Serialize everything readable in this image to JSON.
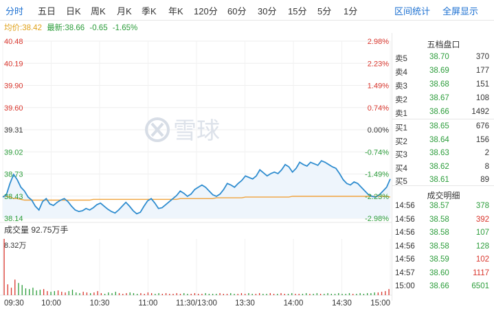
{
  "tabs": {
    "items": [
      "分时",
      "五日",
      "日K",
      "周K",
      "月K",
      "季K",
      "年K",
      "120分",
      "60分",
      "30分",
      "15分",
      "5分",
      "1分"
    ],
    "active": "分时",
    "interval_stats": "区间统计",
    "fullscreen": "全屏显示"
  },
  "info": {
    "avg_label": "均价:38.42",
    "latest_label": "最新:38.66",
    "change": "-0.65",
    "change_pct": "-1.65%"
  },
  "chart_data": {
    "type": "line",
    "price_axis": [
      "40.48",
      "40.19",
      "39.90",
      "39.60",
      "39.31",
      "39.02",
      "38.73",
      "38.43",
      "38.14"
    ],
    "pct_axis": [
      "2.98%",
      "2.23%",
      "1.49%",
      "0.74%",
      "0.00%",
      "-0.74%",
      "-1.49%",
      "-2.23%",
      "-2.98%"
    ],
    "ylim": [
      38.14,
      40.48
    ],
    "x_ticks": [
      "09:30",
      "10:00",
      "10:30",
      "11:00",
      "11:30/13:00",
      "13:30",
      "14:00",
      "14:30",
      "15:00"
    ],
    "price_series": [
      38.42,
      38.45,
      38.6,
      38.72,
      38.65,
      38.55,
      38.5,
      38.42,
      38.38,
      38.3,
      38.25,
      38.36,
      38.4,
      38.33,
      38.31,
      38.35,
      38.38,
      38.4,
      38.36,
      38.3,
      38.25,
      38.23,
      38.24,
      38.27,
      38.25,
      38.28,
      38.32,
      38.34,
      38.3,
      38.26,
      38.23,
      38.21,
      38.25,
      38.3,
      38.35,
      38.3,
      38.24,
      38.2,
      38.22,
      38.3,
      38.37,
      38.4,
      38.34,
      38.27,
      38.28,
      38.32,
      38.36,
      38.4,
      38.44,
      38.5,
      38.47,
      38.43,
      38.46,
      38.52,
      38.55,
      38.58,
      38.55,
      38.5,
      38.45,
      38.43,
      38.46,
      38.52,
      38.6,
      38.58,
      38.55,
      38.6,
      38.64,
      38.7,
      38.68,
      38.66,
      38.7,
      38.78,
      38.74,
      38.7,
      38.73,
      38.75,
      38.73,
      38.78,
      38.85,
      38.82,
      38.75,
      38.8,
      38.88,
      38.85,
      38.83,
      38.88,
      38.86,
      38.84,
      38.9,
      38.88,
      38.85,
      38.82,
      38.8,
      38.73,
      38.65,
      38.6,
      38.58,
      38.62,
      38.6,
      38.55,
      38.5,
      38.45,
      38.43,
      38.42,
      38.45,
      38.5,
      38.55,
      38.66
    ],
    "avg_series": [
      38.43,
      38.43,
      38.42,
      38.4,
      38.4,
      38.39,
      38.38,
      38.38,
      38.38,
      38.38,
      38.38,
      38.38,
      38.38,
      38.38,
      38.38,
      38.38,
      38.38,
      38.38,
      38.38,
      38.38,
      38.38,
      38.38,
      38.38,
      38.38,
      38.38,
      38.39,
      38.39,
      38.39,
      38.39,
      38.39,
      38.39,
      38.39,
      38.39,
      38.39,
      38.39,
      38.39,
      38.39,
      38.39,
      38.39,
      38.39,
      38.39,
      38.39,
      38.39,
      38.39,
      38.39,
      38.39,
      38.39,
      38.39,
      38.39,
      38.4,
      38.4,
      38.4,
      38.4,
      38.4,
      38.4,
      38.4,
      38.4,
      38.4,
      38.4,
      38.41,
      38.41,
      38.41,
      38.41,
      38.41,
      38.41,
      38.41,
      38.41,
      38.42,
      38.42,
      38.42,
      38.42,
      38.42,
      38.42,
      38.42,
      38.42,
      38.42,
      38.42,
      38.42,
      38.42,
      38.42,
      38.43,
      38.43,
      38.43,
      38.43,
      38.43,
      38.43,
      38.43,
      38.43,
      38.43,
      38.43,
      38.43,
      38.43,
      38.43,
      38.43,
      38.43,
      38.43,
      38.43,
      38.43,
      38.43,
      38.43,
      38.43,
      38.43,
      38.43,
      38.43,
      38.43,
      38.43,
      38.43,
      38.42
    ],
    "volume_label": "成交量 92.75万手",
    "volume_max": "8.32万",
    "volume_series": [
      8.32,
      1.6,
      1.1,
      2.3,
      1.8,
      1.5,
      1.0,
      0.9,
      1.1,
      0.7,
      0.8,
      0.9,
      0.6,
      0.5,
      0.6,
      0.7,
      0.5,
      0.4,
      0.6,
      0.8,
      0.4,
      0.3,
      0.5,
      0.4,
      0.3,
      0.4,
      0.6,
      0.3,
      0.2,
      0.4,
      0.3,
      0.5,
      0.3,
      0.2,
      0.3,
      0.4,
      0.3,
      0.2,
      0.3,
      0.2,
      0.4,
      0.3,
      0.2,
      0.3,
      0.2,
      0.3,
      0.2,
      0.2,
      0.3,
      0.2,
      0.3,
      0.2,
      0.2,
      0.3,
      0.2,
      0.2,
      0.3,
      0.2,
      0.2,
      0.2,
      0.3,
      0.2,
      0.2,
      0.3,
      0.2,
      0.2,
      0.3,
      0.2,
      0.3,
      0.2,
      0.2,
      0.3,
      0.2,
      0.2,
      0.3,
      0.2,
      0.2,
      0.3,
      0.2,
      0.2,
      0.3,
      0.2,
      0.2,
      0.2,
      0.3,
      0.2,
      0.2,
      0.3,
      0.2,
      0.2,
      0.3,
      0.2,
      0.2,
      0.3,
      0.2,
      0.2,
      0.3,
      0.2,
      0.2,
      0.3,
      0.2,
      0.3,
      0.3,
      0.4,
      0.4,
      0.5,
      0.6,
      0.9
    ]
  },
  "watermark": "雪球",
  "order_book": {
    "title": "五档盘口",
    "asks": [
      {
        "label": "卖5",
        "price": "38.70",
        "vol": "370"
      },
      {
        "label": "卖4",
        "price": "38.69",
        "vol": "177"
      },
      {
        "label": "卖3",
        "price": "38.68",
        "vol": "151"
      },
      {
        "label": "卖2",
        "price": "38.67",
        "vol": "108"
      },
      {
        "label": "卖1",
        "price": "38.66",
        "vol": "1492"
      }
    ],
    "bids": [
      {
        "label": "买1",
        "price": "38.65",
        "vol": "676"
      },
      {
        "label": "买2",
        "price": "38.64",
        "vol": "156"
      },
      {
        "label": "买3",
        "price": "38.63",
        "vol": "2"
      },
      {
        "label": "买4",
        "price": "38.62",
        "vol": "8"
      },
      {
        "label": "买5",
        "price": "38.61",
        "vol": "89"
      }
    ]
  },
  "trades": {
    "title": "成交明细",
    "rows": [
      {
        "time": "14:56",
        "price": "38.57",
        "vol": "378",
        "dir": "down"
      },
      {
        "time": "14:56",
        "price": "38.58",
        "vol": "392",
        "dir": "up"
      },
      {
        "time": "14:56",
        "price": "38.58",
        "vol": "107",
        "dir": "down"
      },
      {
        "time": "14:56",
        "price": "38.58",
        "vol": "128",
        "dir": "down"
      },
      {
        "time": "14:56",
        "price": "38.59",
        "vol": "102",
        "dir": "up"
      },
      {
        "time": "14:57",
        "price": "38.60",
        "vol": "1117",
        "dir": "up"
      },
      {
        "time": "15:00",
        "price": "38.66",
        "vol": "6501",
        "dir": "down"
      }
    ]
  },
  "colors": {
    "price_line": "#2e8ccf",
    "avg_line": "#f0a23a",
    "up": "#d9342b",
    "down": "#2a9c39",
    "accent": "#1a6fd1"
  }
}
